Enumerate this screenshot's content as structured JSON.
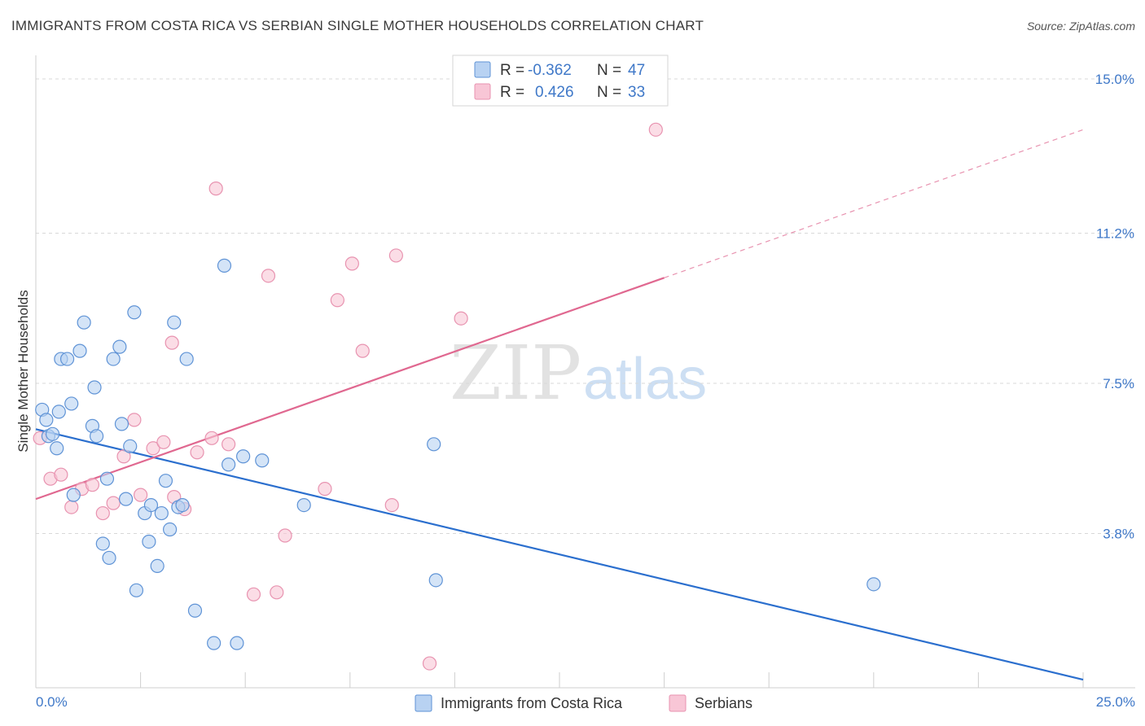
{
  "header": {
    "title": "IMMIGRANTS FROM COSTA RICA VS SERBIAN SINGLE MOTHER HOUSEHOLDS CORRELATION CHART",
    "source": "Source: ZipAtlas.com"
  },
  "watermark": {
    "zip": "ZIP",
    "atlas": "atlas"
  },
  "legend": {
    "entries": [
      {
        "r_label": "R =",
        "r_value": "-0.362",
        "n_label": "N =",
        "n_value": "47"
      },
      {
        "r_label": "R =",
        "r_value": "0.426",
        "n_label": "N =",
        "n_value": "33"
      }
    ]
  },
  "colors": {
    "blue_fill": "#b8d2f2",
    "blue_stroke": "#5f93d6",
    "blue_line": "#2b6fce",
    "pink_fill": "#f8c6d6",
    "pink_stroke": "#e893b0",
    "pink_line": "#e06890",
    "text_blue": "#3f78c8",
    "grid": "#d8d8d8"
  },
  "chart_data": {
    "type": "scatter",
    "title": "IMMIGRANTS FROM COSTA RICA VS SERBIAN SINGLE MOTHER HOUSEHOLDS CORRELATION CHART",
    "xlabel": "",
    "ylabel": "Single Mother Households",
    "xlim": [
      0,
      25
    ],
    "ylim": [
      0,
      15.0
    ],
    "x_tick_labels": [
      "0.0%",
      "25.0%"
    ],
    "y_ticks": [
      3.8,
      7.5,
      11.2,
      15.0
    ],
    "y_tick_labels": [
      "3.8%",
      "7.5%",
      "11.2%",
      "15.0%"
    ],
    "series": [
      {
        "name": "Immigrants from Costa Rica",
        "color": "#5f93d6",
        "r": -0.362,
        "n": 47,
        "trend": {
          "x": [
            0,
            25
          ],
          "y": [
            6.37,
            0.2
          ],
          "style": "solid"
        },
        "points": [
          [
            0.15,
            6.85
          ],
          [
            0.3,
            6.2
          ],
          [
            0.5,
            5.9
          ],
          [
            0.55,
            6.8
          ],
          [
            0.6,
            8.1
          ],
          [
            0.75,
            8.1
          ],
          [
            0.85,
            7.0
          ],
          [
            0.9,
            4.75
          ],
          [
            1.05,
            8.3
          ],
          [
            1.15,
            9.0
          ],
          [
            1.35,
            6.45
          ],
          [
            1.4,
            7.4
          ],
          [
            1.45,
            6.2
          ],
          [
            1.6,
            3.55
          ],
          [
            1.7,
            5.15
          ],
          [
            1.75,
            3.2
          ],
          [
            1.85,
            8.1
          ],
          [
            2.0,
            8.4
          ],
          [
            2.05,
            6.5
          ],
          [
            2.15,
            4.65
          ],
          [
            2.25,
            5.95
          ],
          [
            2.35,
            9.25
          ],
          [
            2.4,
            2.4
          ],
          [
            2.6,
            4.3
          ],
          [
            2.7,
            3.6
          ],
          [
            2.75,
            4.5
          ],
          [
            2.9,
            3.0
          ],
          [
            3.0,
            4.3
          ],
          [
            3.1,
            5.1
          ],
          [
            3.2,
            3.9
          ],
          [
            3.3,
            9.0
          ],
          [
            3.4,
            4.45
          ],
          [
            3.5,
            4.5
          ],
          [
            3.6,
            8.1
          ],
          [
            3.8,
            1.9
          ],
          [
            4.25,
            1.1
          ],
          [
            4.5,
            10.4
          ],
          [
            4.6,
            5.5
          ],
          [
            4.8,
            1.1
          ],
          [
            4.95,
            5.7
          ],
          [
            5.4,
            5.6
          ],
          [
            6.4,
            4.5
          ],
          [
            9.5,
            6.0
          ],
          [
            9.55,
            2.65
          ],
          [
            20.0,
            2.55
          ],
          [
            0.25,
            6.6
          ],
          [
            0.4,
            6.25
          ]
        ]
      },
      {
        "name": "Serbians",
        "color": "#e893b0",
        "r": 0.426,
        "n": 33,
        "trend": {
          "x": [
            0,
            15
          ],
          "y": [
            4.65,
            10.1
          ],
          "style": "solid",
          "dashed_extension": {
            "x": [
              15,
              25
            ],
            "y": [
              10.1,
              13.75
            ]
          }
        },
        "points": [
          [
            0.1,
            6.15
          ],
          [
            0.35,
            5.15
          ],
          [
            0.6,
            5.25
          ],
          [
            0.85,
            4.45
          ],
          [
            1.1,
            4.9
          ],
          [
            1.35,
            5.0
          ],
          [
            1.6,
            4.3
          ],
          [
            1.85,
            4.55
          ],
          [
            2.1,
            5.7
          ],
          [
            2.35,
            6.6
          ],
          [
            2.5,
            4.75
          ],
          [
            2.8,
            5.9
          ],
          [
            3.05,
            6.05
          ],
          [
            3.25,
            8.5
          ],
          [
            3.55,
            4.4
          ],
          [
            3.85,
            5.8
          ],
          [
            4.2,
            6.15
          ],
          [
            4.6,
            6.0
          ],
          [
            4.3,
            12.3
          ],
          [
            5.2,
            2.3
          ],
          [
            5.55,
            10.15
          ],
          [
            5.75,
            2.35
          ],
          [
            5.95,
            3.75
          ],
          [
            6.9,
            4.9
          ],
          [
            7.2,
            9.55
          ],
          [
            7.55,
            10.45
          ],
          [
            7.8,
            8.3
          ],
          [
            8.6,
            10.65
          ],
          [
            8.5,
            4.5
          ],
          [
            9.4,
            0.6
          ],
          [
            10.15,
            9.1
          ],
          [
            14.8,
            13.75
          ],
          [
            3.3,
            4.7
          ]
        ]
      }
    ]
  },
  "bottom_legend": {
    "items": [
      {
        "label": "Immigrants from Costa Rica"
      },
      {
        "label": "Serbians"
      }
    ]
  }
}
